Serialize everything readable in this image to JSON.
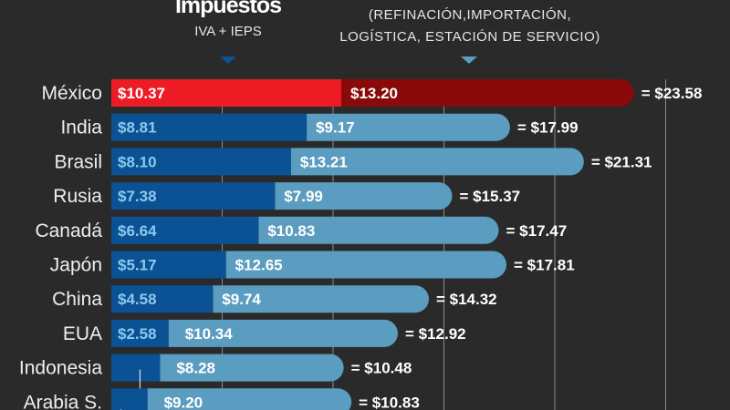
{
  "header": {
    "tax_title": "Impuestos",
    "tax_subtitle": "IVA + IEPS",
    "price_subtitle_line1": "(REFINACIÓN,IMPORTACIÓN,",
    "price_subtitle_line2": "LOGÍSTICA, ESTACIÓN DE SERVICIO)"
  },
  "colors": {
    "background": "#2a2a2a",
    "highlight_tax": "#ed1c24",
    "highlight_price": "#8a0a0a",
    "tax": "#0b5294",
    "price": "#5b9dc0",
    "tax_label": "#8cc8ee"
  },
  "chart_data": {
    "type": "bar",
    "stacked": true,
    "orientation": "horizontal",
    "categories": [
      "México",
      "India",
      "Brasil",
      "Rusia",
      "Canadá",
      "Japón",
      "China",
      "EUA",
      "Indonesia",
      "Arabia S."
    ],
    "series": [
      {
        "values": [
          10.37,
          8.81,
          8.1,
          7.38,
          6.64,
          5.17,
          4.58,
          2.58,
          2.2,
          1.63
        ],
        "labels": [
          "$10.37",
          "$8.81",
          "$8.10",
          "$7.38",
          "$6.64",
          "$5.17",
          "$4.58",
          "$2.58",
          null,
          null
        ]
      },
      {
        "values": [
          13.2,
          9.17,
          13.21,
          7.99,
          10.83,
          12.65,
          9.74,
          10.34,
          8.28,
          9.2
        ],
        "labels": [
          "$13.20",
          "$9.17",
          "$13.21",
          "$7.99",
          "$10.83",
          "$12.65",
          "$9.74",
          "$10.34",
          "$8.28",
          "$9.20"
        ]
      }
    ],
    "totals": [
      "= $23.58",
      "= $17.99",
      "= $21.31",
      "= $15.37",
      "= $17.47",
      "= $17.81",
      "= $14.32",
      "= $12.92",
      "= $10.48",
      "= $10.83"
    ],
    "xlim": [
      0,
      25
    ],
    "grid_step": 5,
    "grid": true,
    "highlight_category": "México"
  }
}
